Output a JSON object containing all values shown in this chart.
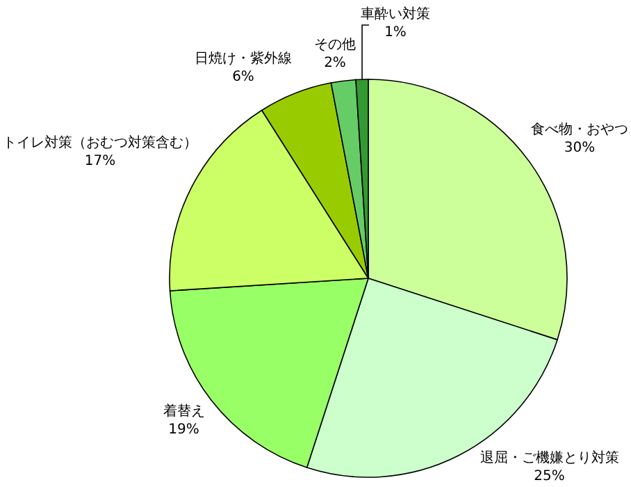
{
  "chart_data": {
    "type": "pie",
    "categories": [
      "食べ物・おやつ",
      "退屈・ご機嫌とり対策",
      "着替え",
      "トイレ対策（おむつ対策含む）",
      "日焼け・紫外線",
      "その他",
      "車酔い対策"
    ],
    "values": [
      30,
      25,
      19,
      17,
      6,
      2,
      1
    ],
    "value_labels": [
      "30%",
      "25%",
      "19%",
      "17%",
      "6%",
      "2%",
      "1%"
    ],
    "colors": [
      "#ccff99",
      "#ccffcc",
      "#99ff66",
      "#ccff66",
      "#99cc00",
      "#66cc66",
      "#339933"
    ]
  }
}
